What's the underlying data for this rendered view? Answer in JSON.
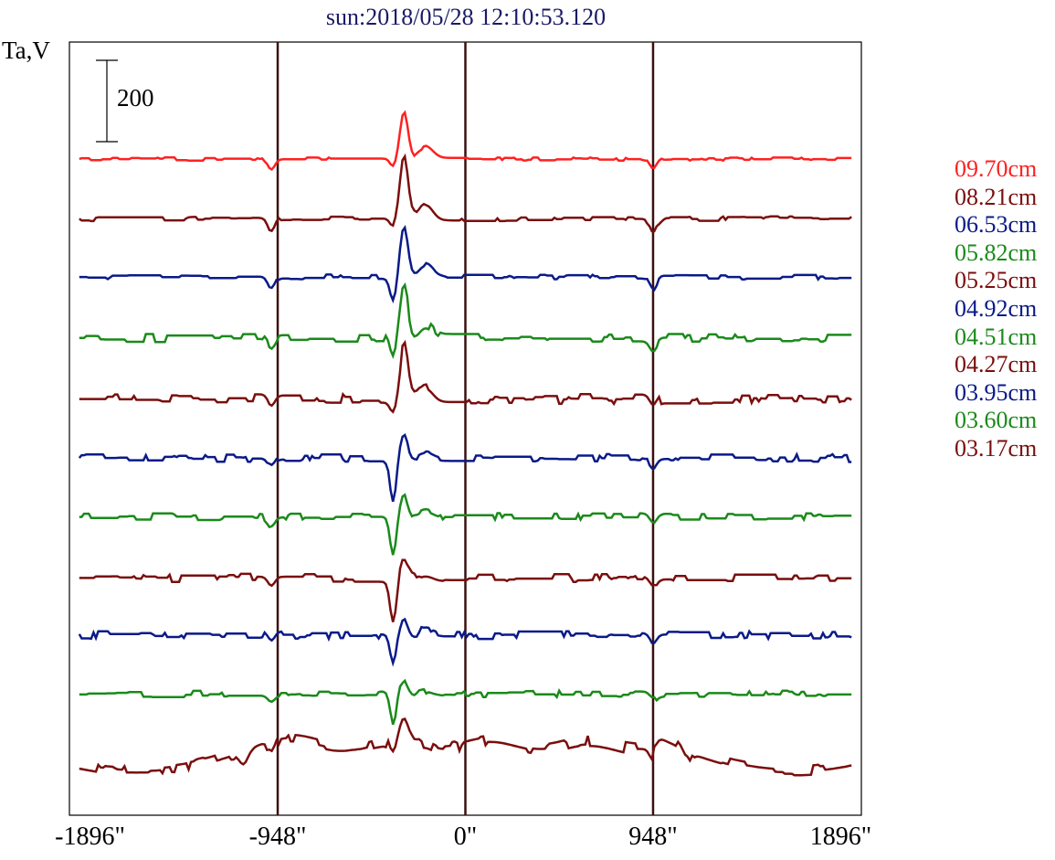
{
  "chart_data": {
    "type": "line",
    "title": "sun:2018/05/28 12:10:53.120",
    "ylabel": "Ta,V",
    "xlabel": "",
    "scale_bar": {
      "value": 200,
      "label": "200"
    },
    "x_range": [
      -2000,
      2000
    ],
    "x_ticks": [
      {
        "value": -1896,
        "label": "-1896\""
      },
      {
        "value": -948,
        "label": "-948\""
      },
      {
        "value": 0,
        "label": "0\""
      },
      {
        "value": 948,
        "label": "948\""
      },
      {
        "value": 1896,
        "label": "1896\""
      }
    ],
    "vertical_lines": [
      -948,
      0,
      948
    ],
    "grid": false,
    "legend_position": "right",
    "series": [
      {
        "name": "09.70cm",
        "color": "#ff2020",
        "baseline": 0,
        "peak": 115,
        "dip": -20,
        "limb": -25,
        "noise": 4
      },
      {
        "name": "08.21cm",
        "color": "#7a0e0e",
        "baseline": -147,
        "peak": 150,
        "dip": -20,
        "limb": -35,
        "noise": 6
      },
      {
        "name": "06.53cm",
        "color": "#0a1a88",
        "baseline": -290,
        "peak": 125,
        "dip": -55,
        "limb": -30,
        "noise": 6
      },
      {
        "name": "05.82cm",
        "color": "#1a8a1a",
        "baseline": -440,
        "peak": 130,
        "dip": -55,
        "limb": -25,
        "noise": 10
      },
      {
        "name": "05.25cm",
        "color": "#7a0e0e",
        "baseline": -590,
        "peak": 130,
        "dip": -25,
        "limb": -25,
        "noise": 12
      },
      {
        "name": "04.92cm",
        "color": "#0a1a88",
        "baseline": -735,
        "peak": 55,
        "dip": -110,
        "limb": -22,
        "noise": 10
      },
      {
        "name": "04.51cm",
        "color": "#1a8a1a",
        "baseline": -880,
        "peak": 55,
        "dip": -95,
        "limb": -22,
        "noise": 10
      },
      {
        "name": "04.27cm",
        "color": "#7a0e0e",
        "baseline": -1030,
        "peak": 45,
        "dip": -100,
        "limb": -22,
        "noise": 10
      },
      {
        "name": "03.95cm",
        "color": "#0a1a88",
        "baseline": -1170,
        "peak": 45,
        "dip": -70,
        "limb": -22,
        "noise": 10
      },
      {
        "name": "03.60cm",
        "color": "#1a8a1a",
        "baseline": -1315,
        "peak": 35,
        "dip": -75,
        "limb": -15,
        "noise": 8
      },
      {
        "name": "03.17cm",
        "color": "#7a0e0e",
        "baseline": -1460,
        "peak": 45,
        "dip": -40,
        "limb": -30,
        "noise": 14,
        "shape": "broad"
      }
    ],
    "legend_names": [
      "09.70cm",
      "08.21cm",
      "06.53cm",
      "05.82cm",
      "05.25cm",
      "04.92cm",
      "04.51cm",
      "04.27cm",
      "03.95cm",
      "03.60cm",
      "03.17cm"
    ]
  }
}
